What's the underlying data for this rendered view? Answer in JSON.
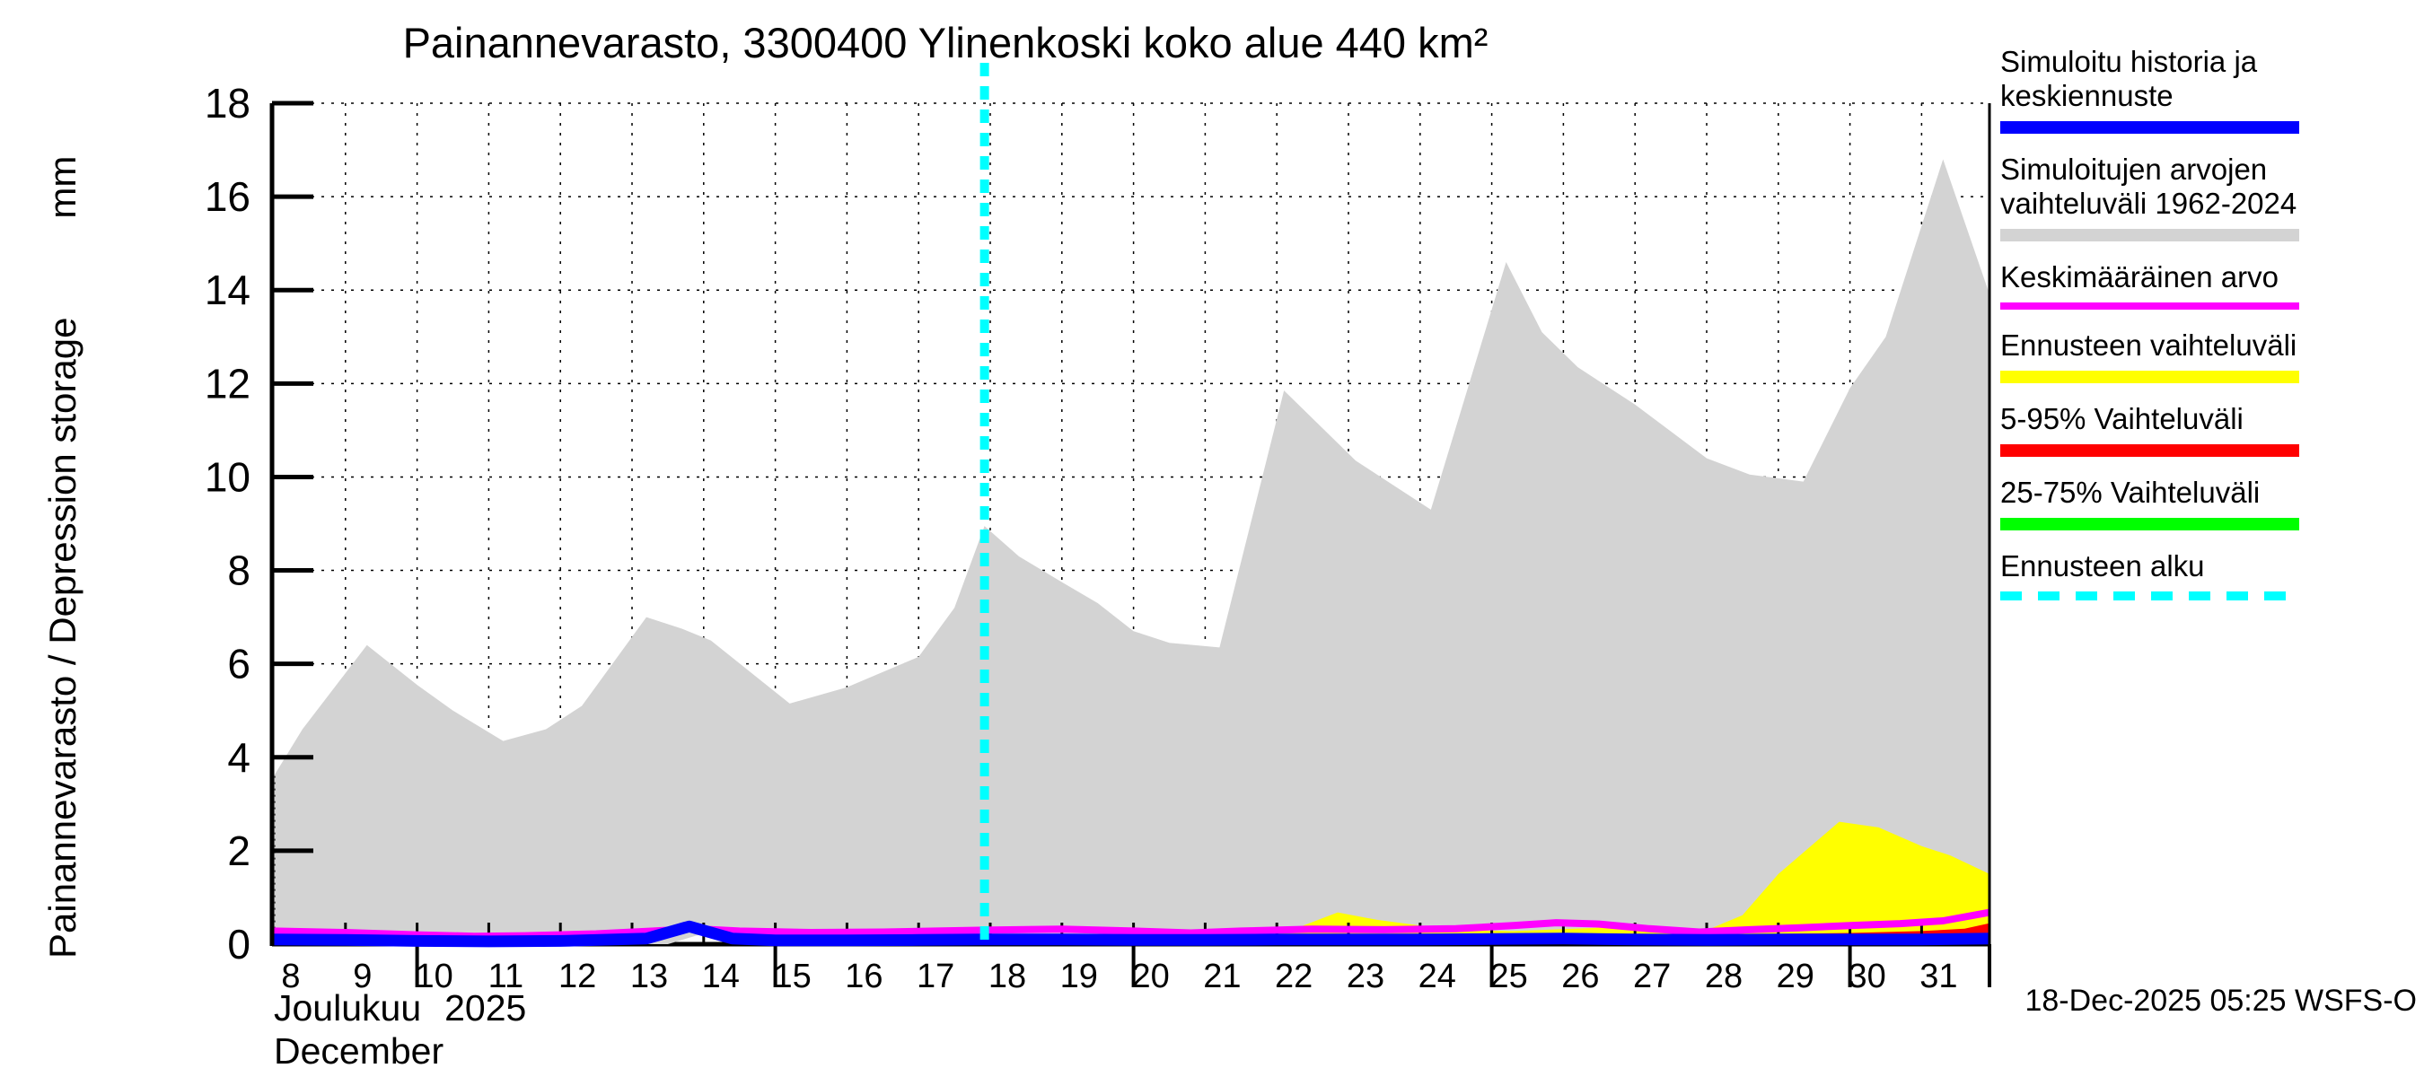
{
  "title": "Painannevarasto, 3300400 Ylinenkoski koko alue 440 km²",
  "y_axis": {
    "label_combined": "Painannevarasto / Depression storage",
    "unit": "mm",
    "ticks": [
      0,
      2,
      4,
      6,
      8,
      10,
      12,
      14,
      16,
      18
    ],
    "range": [
      0,
      18
    ]
  },
  "x_axis": {
    "tick_days": [
      8,
      9,
      10,
      11,
      12,
      13,
      14,
      15,
      16,
      17,
      18,
      19,
      20,
      21,
      22,
      23,
      24,
      25,
      26,
      27,
      28,
      29,
      30,
      31
    ],
    "long_tick_days": [
      10,
      15,
      20,
      25,
      30
    ],
    "month_fi": "Joulukuu",
    "year": "2025",
    "month_en": "December"
  },
  "footer": {
    "timestamp": "18-Dec-2025 05:25 WSFS-O"
  },
  "legend": {
    "items": [
      {
        "label": "Simuloitu historia ja keskiennuste",
        "color": "#0000ff",
        "swatch": "bar"
      },
      {
        "label": "Simuloitujen arvojen vaihteluväli 1962-2024",
        "color": "#d3d3d3",
        "swatch": "bar"
      },
      {
        "label": "Keskimääräinen arvo",
        "color": "#ff00ff",
        "swatch": "line"
      },
      {
        "label": "Ennusteen vaihteluväli",
        "color": "#ffff00",
        "swatch": "bar"
      },
      {
        "label": "5-95% Vaihteluväli",
        "color": "#ff0000",
        "swatch": "bar"
      },
      {
        "label": "25-75% Vaihteluväli",
        "color": "#00ff00",
        "swatch": "bar"
      },
      {
        "label": "Ennusteen alku",
        "color": "#00ffff",
        "swatch": "dashes"
      }
    ]
  },
  "chart_data": {
    "type": "area",
    "title": "Painannevarasto, 3300400 Ylinenkoski koko alue 440 km²",
    "xlabel": "Joulukuu 2025 / December",
    "ylabel": "Painannevarasto / Depression storage (mm)",
    "x_unit": "day of December 2025",
    "x_range": [
      8,
      31.95
    ],
    "ylim": [
      0,
      18
    ],
    "grid": true,
    "legend_position": "right",
    "forecast_start_day": 17.92,
    "series": [
      {
        "name": "Simuloitujen arvojen vaihteluväli 1962-2024",
        "kind": "band",
        "color": "#d3d3d3",
        "upper": [
          [
            8,
            3.6
          ],
          [
            8.4,
            4.6
          ],
          [
            9.3,
            6.4
          ],
          [
            10,
            5.55
          ],
          [
            10.5,
            5.0
          ],
          [
            11.2,
            4.35
          ],
          [
            11.8,
            4.6
          ],
          [
            12.3,
            5.1
          ],
          [
            13.2,
            7.0
          ],
          [
            13.7,
            6.75
          ],
          [
            14.1,
            6.5
          ],
          [
            15.2,
            5.15
          ],
          [
            16,
            5.5
          ],
          [
            17,
            6.15
          ],
          [
            17.5,
            7.2
          ],
          [
            17.92,
            8.95
          ],
          [
            18.4,
            8.3
          ],
          [
            19,
            7.75
          ],
          [
            19.5,
            7.3
          ],
          [
            20,
            6.7
          ],
          [
            20.5,
            6.45
          ],
          [
            21.2,
            6.35
          ],
          [
            22.1,
            11.85
          ],
          [
            23.1,
            10.35
          ],
          [
            24.15,
            9.3
          ],
          [
            25.2,
            14.6
          ],
          [
            25.7,
            13.1
          ],
          [
            26.2,
            12.35
          ],
          [
            27,
            11.55
          ],
          [
            28,
            10.4
          ],
          [
            28.6,
            10.05
          ],
          [
            29.35,
            9.9
          ],
          [
            30,
            11.9
          ],
          [
            30.5,
            13.0
          ],
          [
            31.3,
            16.8
          ],
          [
            31.95,
            13.9
          ]
        ],
        "lower": [
          [
            8,
            0
          ],
          [
            13.5,
            0
          ],
          [
            14.15,
            0.3
          ],
          [
            14.9,
            0
          ],
          [
            31.95,
            0
          ]
        ]
      },
      {
        "name": "Ennusteen vaihteluväli",
        "kind": "band",
        "color": "#ffff00",
        "upper": [
          [
            21.75,
            0.12
          ],
          [
            22.2,
            0.3
          ],
          [
            22.85,
            0.68
          ],
          [
            23.4,
            0.52
          ],
          [
            24,
            0.4
          ],
          [
            24.6,
            0.3
          ],
          [
            25.3,
            0.28
          ],
          [
            26,
            0.32
          ],
          [
            26.6,
            0.36
          ],
          [
            27.3,
            0.3
          ],
          [
            28,
            0.3
          ],
          [
            28.5,
            0.62
          ],
          [
            29,
            1.5
          ],
          [
            29.85,
            2.62
          ],
          [
            30.4,
            2.5
          ],
          [
            31,
            2.1
          ],
          [
            31.4,
            1.9
          ],
          [
            31.95,
            1.5
          ]
        ],
        "lower": [
          [
            21.75,
            0.1
          ],
          [
            31.95,
            0.1
          ]
        ]
      },
      {
        "name": "5-95% Vaihteluväli",
        "kind": "band",
        "color": "#ff0000",
        "upper": [
          [
            28.2,
            0.2
          ],
          [
            29,
            0.22
          ],
          [
            30,
            0.24
          ],
          [
            31,
            0.28
          ],
          [
            31.6,
            0.33
          ],
          [
            31.95,
            0.45
          ]
        ],
        "lower": [
          [
            28.2,
            0.1
          ],
          [
            31.95,
            0.12
          ]
        ]
      },
      {
        "name": "25-75% Vaihteluväli",
        "kind": "band",
        "color": "#00ff00",
        "visible": false,
        "upper": [],
        "lower": []
      },
      {
        "name": "Keskimääräinen arvo",
        "kind": "line",
        "color": "#ff00ff",
        "width": 8,
        "points": [
          [
            8,
            0.28
          ],
          [
            9,
            0.25
          ],
          [
            10,
            0.2
          ],
          [
            10.8,
            0.17
          ],
          [
            11.5,
            0.18
          ],
          [
            12.5,
            0.22
          ],
          [
            13.3,
            0.28
          ],
          [
            13.85,
            0.33
          ],
          [
            14.5,
            0.28
          ],
          [
            15.5,
            0.25
          ],
          [
            16.5,
            0.26
          ],
          [
            17.92,
            0.3
          ],
          [
            19,
            0.32
          ],
          [
            20,
            0.28
          ],
          [
            20.8,
            0.24
          ],
          [
            21.5,
            0.28
          ],
          [
            22.5,
            0.32
          ],
          [
            23.5,
            0.31
          ],
          [
            24.5,
            0.33
          ],
          [
            25.3,
            0.4
          ],
          [
            25.9,
            0.46
          ],
          [
            26.5,
            0.43
          ],
          [
            27.2,
            0.33
          ],
          [
            27.9,
            0.26
          ],
          [
            28.6,
            0.31
          ],
          [
            29.3,
            0.35
          ],
          [
            30,
            0.4
          ],
          [
            30.7,
            0.44
          ],
          [
            31.3,
            0.5
          ],
          [
            31.95,
            0.68
          ]
        ]
      },
      {
        "name": "Simuloitu historia ja keskiennuste",
        "kind": "line",
        "color": "#0000ff",
        "width": 13,
        "points": [
          [
            8,
            0.1
          ],
          [
            9,
            0.09
          ],
          [
            10,
            0.07
          ],
          [
            11,
            0.06
          ],
          [
            12,
            0.07
          ],
          [
            13.2,
            0.12
          ],
          [
            13.8,
            0.38
          ],
          [
            14.4,
            0.12
          ],
          [
            15,
            0.08
          ],
          [
            16,
            0.08
          ],
          [
            17,
            0.09
          ],
          [
            17.92,
            0.1
          ],
          [
            19,
            0.1
          ],
          [
            20,
            0.09
          ],
          [
            21,
            0.09
          ],
          [
            22,
            0.1
          ],
          [
            23,
            0.1
          ],
          [
            24,
            0.1
          ],
          [
            25,
            0.11
          ],
          [
            26,
            0.12
          ],
          [
            27,
            0.1
          ],
          [
            28,
            0.09
          ],
          [
            29,
            0.1
          ],
          [
            30,
            0.1
          ],
          [
            31,
            0.1
          ],
          [
            31.95,
            0.12
          ]
        ]
      }
    ],
    "forecast_line": {
      "name": "Ennusteen alku",
      "color": "#00ffff",
      "style": "dashed"
    }
  },
  "style": {
    "grid_color": "#000000",
    "axis_color": "#000000",
    "background": "#ffffff"
  }
}
